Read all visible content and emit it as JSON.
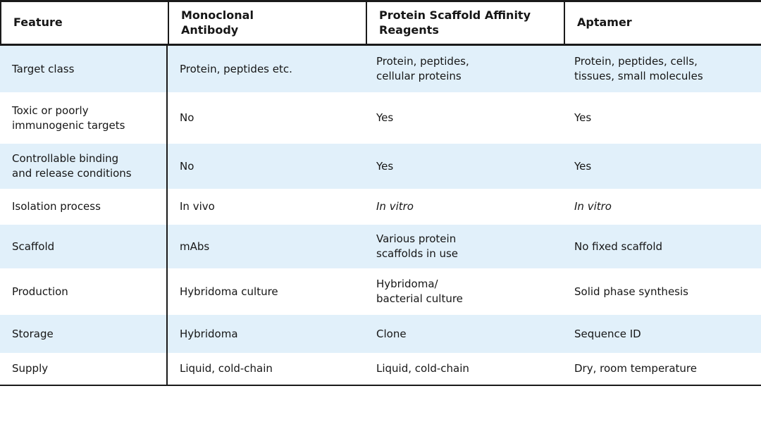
{
  "table": {
    "stripe_color": "#e1f0fa",
    "border_color": "#1a1a1a",
    "header": {
      "cells": [
        {
          "text": "Feature"
        },
        {
          "text": "Monoclonal\nAntibody"
        },
        {
          "text": "Protein Scaffold Affinity\nReagents"
        },
        {
          "text": "Aptamer"
        }
      ]
    },
    "rows": [
      {
        "striped": true,
        "cells": [
          {
            "text": "Target class"
          },
          {
            "text": "Protein, peptides etc."
          },
          {
            "text": "Protein, peptides,\ncellular proteins"
          },
          {
            "text": "Protein, peptides, cells,\ntissues, small molecules"
          }
        ]
      },
      {
        "striped": false,
        "cells": [
          {
            "text": "Toxic or poorly\nimmunogenic targets"
          },
          {
            "text": "No"
          },
          {
            "text": "Yes"
          },
          {
            "text": "Yes"
          }
        ]
      },
      {
        "striped": true,
        "cells": [
          {
            "text": "Controllable binding\nand release conditions"
          },
          {
            "text": "No"
          },
          {
            "text": "Yes"
          },
          {
            "text": "Yes"
          }
        ]
      },
      {
        "striped": false,
        "cells": [
          {
            "text": "Isolation process"
          },
          {
            "text": "In vivo"
          },
          {
            "text": "In vitro",
            "italic": true
          },
          {
            "text": "In vitro",
            "italic": true
          }
        ]
      },
      {
        "striped": true,
        "cells": [
          {
            "text": "Scaffold"
          },
          {
            "text": "mAbs"
          },
          {
            "text": "Various protein\nscaffolds in use"
          },
          {
            "text": "No fixed scaffold"
          }
        ]
      },
      {
        "striped": false,
        "cells": [
          {
            "text": "Production"
          },
          {
            "text": "Hybridoma culture"
          },
          {
            "text": "Hybridoma/\nbacterial culture"
          },
          {
            "text": "Solid phase synthesis"
          }
        ]
      },
      {
        "striped": true,
        "cells": [
          {
            "text": "Storage"
          },
          {
            "text": "Hybridoma"
          },
          {
            "text": "Clone"
          },
          {
            "text": "Sequence ID"
          }
        ]
      },
      {
        "striped": false,
        "cells": [
          {
            "text": "Supply"
          },
          {
            "text": "Liquid, cold-chain"
          },
          {
            "text": "Liquid, cold-chain"
          },
          {
            "text": "Dry, room temperature"
          }
        ]
      }
    ]
  }
}
